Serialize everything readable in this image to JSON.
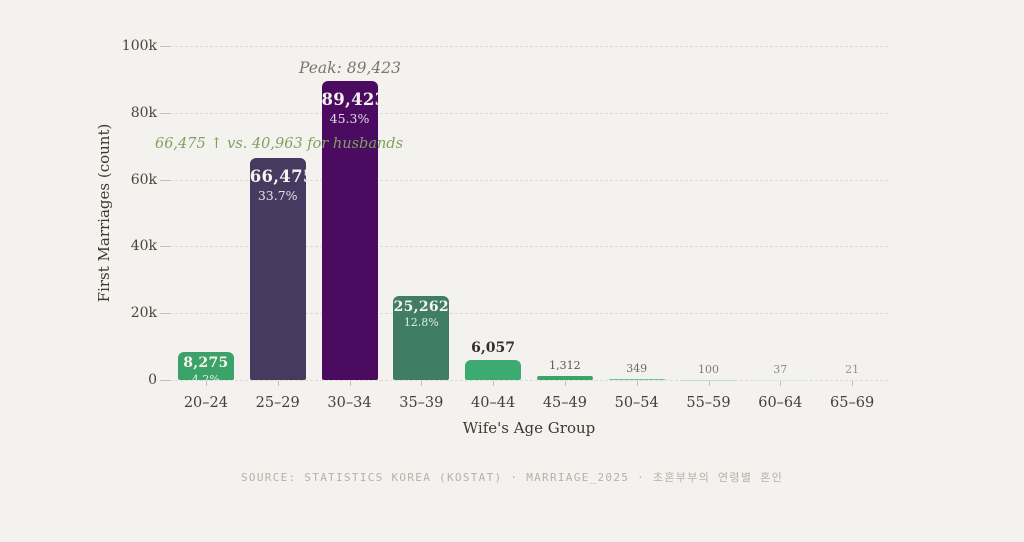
{
  "chart_data": {
    "type": "bar",
    "title": "",
    "xlabel": "Wife's Age Group",
    "ylabel": "First Marriages (count)",
    "categories": [
      "20–24",
      "25–29",
      "30–34",
      "35–39",
      "40–44",
      "45–49",
      "50–54",
      "55–59",
      "60–64",
      "65–69"
    ],
    "values": [
      8275,
      66475,
      89423,
      25262,
      6057,
      1312,
      349,
      100,
      37,
      21
    ],
    "value_labels": [
      "8,275",
      "66,475",
      "89,423",
      "25,262",
      "6,057",
      "1,312",
      "349",
      "100",
      "37",
      "21"
    ],
    "pct_labels": [
      "4.2%",
      "33.7%",
      "45.3%",
      "12.8%",
      "",
      "",
      "",
      "",
      "",
      ""
    ],
    "bar_colors": [
      "#3ba26a",
      "#463a61",
      "#4b0b60",
      "#3f7e64",
      "#3cab72",
      "#3ba26a",
      "#72c29b",
      "#b9dfcb",
      "#d8ecdf",
      "#e6f3ea"
    ],
    "ylim": [
      0,
      100000
    ],
    "yticks": [
      {
        "value": 0,
        "label": "0"
      },
      {
        "value": 20000,
        "label": "20k"
      },
      {
        "value": 40000,
        "label": "40k"
      },
      {
        "value": 60000,
        "label": "60k"
      },
      {
        "value": 80000,
        "label": "80k"
      },
      {
        "value": 100000,
        "label": "100k"
      }
    ],
    "grid": "horizontal-dashed",
    "legend": "none",
    "annotations": [
      {
        "id": "peak",
        "text": "Peak: 89,423",
        "color": "#7b756c"
      },
      {
        "id": "husband-comparison",
        "text": "66,475 ↑ vs. 40,963 for husbands",
        "color": "#7da25e"
      }
    ]
  },
  "colors": {
    "background": "#f4f2ee",
    "gridline": "#e0dbd2",
    "axis_text": "#46403a",
    "inside_bar_label": "#f7f4ef",
    "source_text": "#b6b0a8"
  },
  "footer": {
    "source": "SOURCE: STATISTICS KOREA (KOSTAT) · MARRIAGE_2025 · 초혼부부의 연령별 혼인"
  }
}
